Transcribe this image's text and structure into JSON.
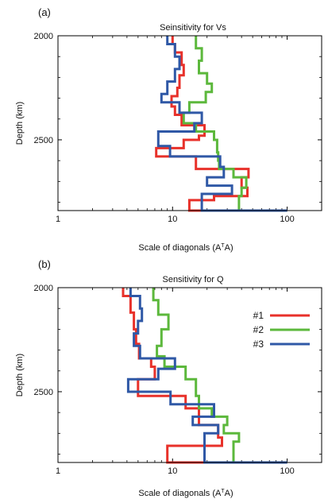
{
  "chart_data": [
    {
      "type": "line",
      "panel_label": "(a)",
      "title": "Seinsitivity for Vs",
      "xlabel": "Scale of diagonals (A",
      "xlabel_sup": "T",
      "xlabel_tail": "A)",
      "ylabel": "Depth (km)",
      "xscale": "log",
      "xlim": [
        1,
        200
      ],
      "ylim": [
        2000,
        2840
      ],
      "x_ticks": [
        1,
        10,
        100
      ],
      "x_tick_labels": [
        "1",
        "10",
        "100"
      ],
      "y_ticks": [
        2000,
        2500
      ],
      "y_tick_labels": [
        "2000",
        "2500"
      ],
      "grid": false,
      "legend": null,
      "series": [
        {
          "color": "#e8312a",
          "x": [
            10,
            10.5,
            12,
            12.5,
            11.5,
            11,
            9.8,
            10.5,
            12,
            19,
            17,
            12.5,
            7.2,
            16,
            46,
            40,
            45,
            23,
            14,
            100
          ],
          "y_top": [
            2000,
            2040,
            2080,
            2140,
            2190,
            2250,
            2290,
            2340,
            2380,
            2430,
            2480,
            2500,
            2540,
            2580,
            2640,
            2680,
            2730,
            2770,
            2790,
            2840
          ],
          "y_bottom": [
            2040,
            2080,
            2140,
            2190,
            2250,
            2290,
            2340,
            2380,
            2430,
            2480,
            2500,
            2540,
            2580,
            2640,
            2680,
            2730,
            2770,
            2790,
            2840,
            2840
          ]
        },
        {
          "color": "#5cb83c",
          "x": [
            16,
            18,
            17,
            20,
            22,
            19.5,
            14,
            12.5,
            16,
            23,
            24.5,
            25,
            25.5,
            34,
            44,
            40,
            38,
            100
          ],
          "y_top": [
            2000,
            2060,
            2120,
            2180,
            2230,
            2270,
            2320,
            2370,
            2420,
            2460,
            2500,
            2560,
            2600,
            2640,
            2680,
            2730,
            2770,
            2840
          ],
          "y_bottom": [
            2060,
            2120,
            2180,
            2230,
            2270,
            2320,
            2370,
            2420,
            2460,
            2500,
            2560,
            2600,
            2640,
            2680,
            2730,
            2770,
            2840,
            2840
          ]
        },
        {
          "color": "#2f58a6",
          "x": [
            9,
            10.5,
            11.5,
            10.5,
            9,
            8,
            11.5,
            18,
            15.5,
            7.5,
            9.5,
            26,
            28,
            20,
            33,
            18,
            100
          ],
          "y_top": [
            2000,
            2040,
            2100,
            2160,
            2220,
            2280,
            2320,
            2370,
            2420,
            2460,
            2530,
            2580,
            2630,
            2680,
            2720,
            2760,
            2840
          ],
          "y_bottom": [
            2040,
            2100,
            2160,
            2220,
            2280,
            2320,
            2370,
            2420,
            2460,
            2530,
            2580,
            2630,
            2680,
            2720,
            2760,
            2840,
            2840
          ]
        }
      ]
    },
    {
      "type": "line",
      "panel_label": "(b)",
      "title": "Sensitivity for Q",
      "xlabel": "Scale of diagonals (A",
      "xlabel_sup": "T",
      "xlabel_tail": "A)",
      "ylabel": "Depth (km)",
      "xscale": "log",
      "xlim": [
        1,
        200
      ],
      "ylim": [
        2000,
        2840
      ],
      "x_ticks": [
        1,
        10,
        100
      ],
      "x_tick_labels": [
        "1",
        "10",
        "100"
      ],
      "y_ticks": [
        2000,
        2500
      ],
      "y_tick_labels": [
        "2000",
        "2500"
      ],
      "grid": false,
      "legend": {
        "position": "top-right",
        "entries": [
          "#1",
          "#2",
          "#3"
        ]
      },
      "series": [
        {
          "name": "#1",
          "color": "#e8312a",
          "x": [
            3.7,
            4.3,
            4.6,
            4.8,
            5.1,
            6.5,
            7,
            5,
            13,
            17,
            25,
            27,
            9,
            100
          ],
          "y_top": [
            2000,
            2040,
            2120,
            2200,
            2270,
            2340,
            2380,
            2440,
            2520,
            2580,
            2660,
            2720,
            2760,
            2840
          ],
          "y_bottom": [
            2040,
            2120,
            2200,
            2270,
            2340,
            2380,
            2440,
            2520,
            2580,
            2660,
            2720,
            2760,
            2840,
            2840
          ]
        },
        {
          "name": "#2",
          "color": "#5cb83c",
          "x": [
            6.8,
            7.5,
            9.2,
            8,
            7.3,
            8.5,
            13,
            16,
            17,
            22,
            30,
            28,
            38,
            34,
            100
          ],
          "y_top": [
            2000,
            2060,
            2130,
            2200,
            2280,
            2330,
            2380,
            2440,
            2520,
            2580,
            2620,
            2660,
            2700,
            2740,
            2840
          ],
          "y_bottom": [
            2060,
            2130,
            2200,
            2280,
            2330,
            2380,
            2440,
            2520,
            2580,
            2620,
            2660,
            2700,
            2740,
            2840,
            2840
          ]
        },
        {
          "name": "#3",
          "color": "#2f58a6",
          "x": [
            4.3,
            5.2,
            5.4,
            5,
            4.6,
            5.2,
            10.5,
            7.5,
            4.1,
            9.6,
            23,
            15,
            25,
            19,
            100
          ],
          "y_top": [
            2000,
            2040,
            2100,
            2160,
            2220,
            2280,
            2340,
            2390,
            2440,
            2500,
            2560,
            2620,
            2660,
            2700,
            2840
          ],
          "y_bottom": [
            2040,
            2100,
            2160,
            2220,
            2280,
            2340,
            2390,
            2440,
            2500,
            2560,
            2620,
            2660,
            2700,
            2840,
            2840
          ]
        }
      ]
    }
  ]
}
